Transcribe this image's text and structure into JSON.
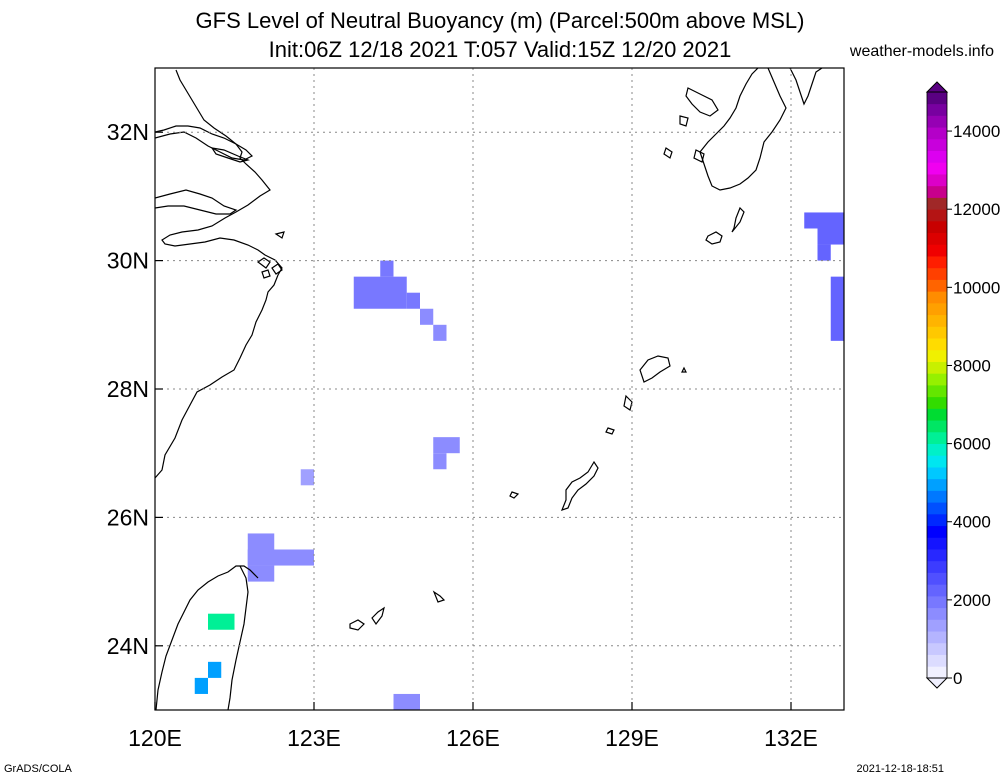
{
  "title": {
    "line1": "GFS Level of Neutral Buoyancy (m) (Parcel:500m above MSL)",
    "line2": "Init:06Z 12/18 2021 T:057 Valid:15Z 12/20 2021"
  },
  "site": "weather-models.info",
  "footer": {
    "left": "GrADS/COLA",
    "right": "2021-12-18-18:51"
  },
  "map": {
    "lon_range": [
      120,
      133
    ],
    "lat_range": [
      23,
      33
    ],
    "lon_ticks": [
      {
        "value": 120,
        "label": "120E"
      },
      {
        "value": 123,
        "label": "123E"
      },
      {
        "value": 126,
        "label": "126E"
      },
      {
        "value": 129,
        "label": "129E"
      },
      {
        "value": 132,
        "label": "132E"
      }
    ],
    "lat_ticks": [
      {
        "value": 24,
        "label": "24N"
      },
      {
        "value": 26,
        "label": "26N"
      },
      {
        "value": 28,
        "label": "28N"
      },
      {
        "value": 30,
        "label": "30N"
      },
      {
        "value": 32,
        "label": "32N"
      }
    ],
    "grid": true
  },
  "colorbar": {
    "min": 0,
    "max": 15000,
    "labels": [
      "0",
      "2000",
      "4000",
      "6000",
      "8000",
      "10000",
      "12000",
      "14000"
    ],
    "label_values": [
      0,
      2000,
      4000,
      6000,
      8000,
      10000,
      12000,
      14000
    ],
    "colors": [
      "#f0f0ff",
      "#dcdcff",
      "#c8c8ff",
      "#b4b4ff",
      "#a0a0ff",
      "#8c8cff",
      "#7878ff",
      "#6464ff",
      "#5050ff",
      "#3c3cff",
      "#2828ff",
      "#1414ff",
      "#0000ff",
      "#0028ff",
      "#0050ff",
      "#0078ff",
      "#00a0ff",
      "#00c8ff",
      "#00e6f0",
      "#00f0c8",
      "#00f096",
      "#00e664",
      "#00dc32",
      "#32dc00",
      "#64e600",
      "#96f000",
      "#c8f000",
      "#f0f000",
      "#ffdc00",
      "#ffc800",
      "#ffb400",
      "#ffa000",
      "#ff8c00",
      "#ff6400",
      "#ff4000",
      "#ff1e00",
      "#f00000",
      "#dc0000",
      "#c80000",
      "#b41414",
      "#a02828",
      "#c8008c",
      "#dc00c8",
      "#f000f0",
      "#dc00f0",
      "#c800dc",
      "#b400c8",
      "#9600b4",
      "#7800a0",
      "#5a0082"
    ]
  },
  "chart_data": {
    "type": "heatmap",
    "title": "GFS Level of Neutral Buoyancy (m) (Parcel:500m above MSL)",
    "units": "m",
    "cells": [
      {
        "lon": [
          124.25,
          124.5
        ],
        "lat": [
          29.75,
          30.0
        ],
        "value": 1800
      },
      {
        "lon": [
          123.75,
          124.75
        ],
        "lat": [
          29.25,
          29.75
        ],
        "value": 1900
      },
      {
        "lon": [
          124.75,
          125.0
        ],
        "lat": [
          29.25,
          29.5
        ],
        "value": 1800
      },
      {
        "lon": [
          125.0,
          125.25
        ],
        "lat": [
          29.0,
          29.25
        ],
        "value": 1700
      },
      {
        "lon": [
          125.25,
          125.5
        ],
        "lat": [
          28.75,
          29.0
        ],
        "value": 1700
      },
      {
        "lon": [
          125.25,
          125.75
        ],
        "lat": [
          27.0,
          27.25
        ],
        "value": 1700
      },
      {
        "lon": [
          125.25,
          125.5
        ],
        "lat": [
          26.75,
          27.0
        ],
        "value": 1700
      },
      {
        "lon": [
          122.75,
          123.0
        ],
        "lat": [
          26.5,
          26.75
        ],
        "value": 1400
      },
      {
        "lon": [
          121.75,
          122.25
        ],
        "lat": [
          25.25,
          25.75
        ],
        "value": 1500
      },
      {
        "lon": [
          121.75,
          123.0
        ],
        "lat": [
          25.25,
          25.5
        ],
        "value": 1600
      },
      {
        "lon": [
          121.75,
          122.25
        ],
        "lat": [
          25.0,
          25.25
        ],
        "value": 1700
      },
      {
        "lon": [
          121.0,
          121.5
        ],
        "lat": [
          24.25,
          24.5
        ],
        "value": 6000
      },
      {
        "lon": [
          121.0,
          121.25
        ],
        "lat": [
          23.5,
          23.75
        ],
        "value": 5000
      },
      {
        "lon": [
          120.75,
          121.0
        ],
        "lat": [
          23.25,
          23.5
        ],
        "value": 5000
      },
      {
        "lon": [
          124.5,
          125.0
        ],
        "lat": [
          23.0,
          23.25
        ],
        "value": 1700
      },
      {
        "lon": [
          132.25,
          133.0
        ],
        "lat": [
          30.5,
          30.75
        ],
        "value": 2100
      },
      {
        "lon": [
          132.5,
          133.0
        ],
        "lat": [
          30.25,
          30.5
        ],
        "value": 2100
      },
      {
        "lon": [
          132.5,
          132.75
        ],
        "lat": [
          30.0,
          30.25
        ],
        "value": 2100
      },
      {
        "lon": [
          132.75,
          133.0
        ],
        "lat": [
          28.75,
          29.75
        ],
        "value": 2100
      }
    ]
  }
}
